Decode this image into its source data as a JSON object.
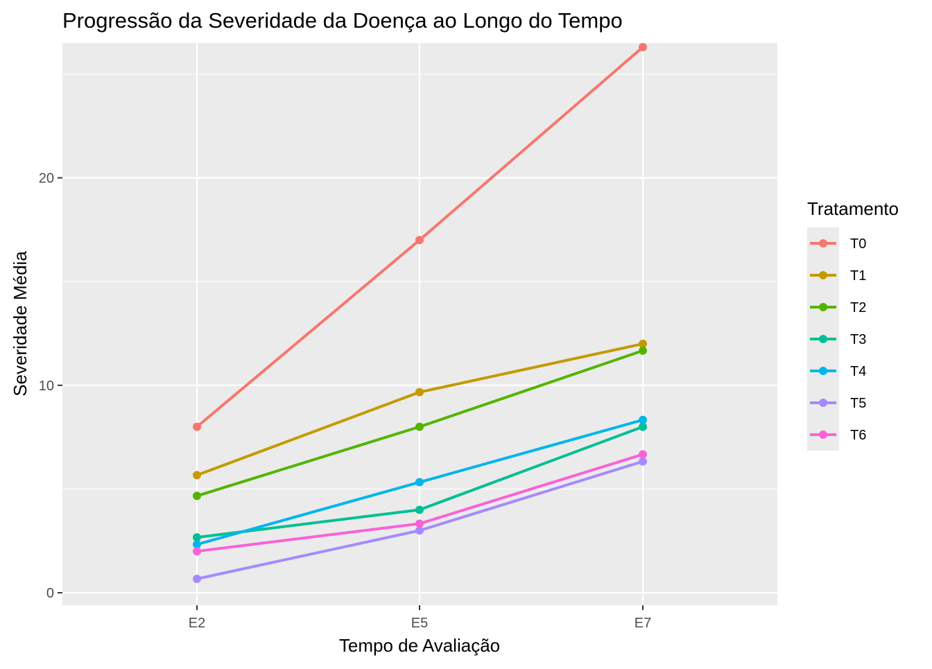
{
  "chart_data": {
    "type": "line",
    "title": "Progressão da Severidade da Doença ao Longo do Tempo",
    "xlabel": "Tempo de Avaliação",
    "ylabel": "Severidade Média",
    "categories": [
      "E2",
      "E5",
      "E7"
    ],
    "ylim": [
      -0.6,
      26.5
    ],
    "yticks": [
      0,
      10,
      20
    ],
    "grid": true,
    "legend": {
      "title": "Tratamento",
      "position": "right"
    },
    "series": [
      {
        "name": "T0",
        "color": "#F8766D",
        "values": [
          8.0,
          17.0,
          26.3
        ]
      },
      {
        "name": "T1",
        "color": "#C49A00",
        "values": [
          5.67,
          9.67,
          12.0
        ]
      },
      {
        "name": "T2",
        "color": "#53B400",
        "values": [
          4.67,
          8.0,
          11.67
        ]
      },
      {
        "name": "T3",
        "color": "#00C094",
        "values": [
          2.67,
          4.0,
          8.0
        ]
      },
      {
        "name": "T4",
        "color": "#00B6EB",
        "values": [
          2.33,
          5.33,
          8.33
        ]
      },
      {
        "name": "T5",
        "color": "#A58AFF",
        "values": [
          0.67,
          3.0,
          6.33
        ]
      },
      {
        "name": "T6",
        "color": "#FB61D7",
        "values": [
          2.0,
          3.33,
          6.67
        ]
      }
    ]
  }
}
